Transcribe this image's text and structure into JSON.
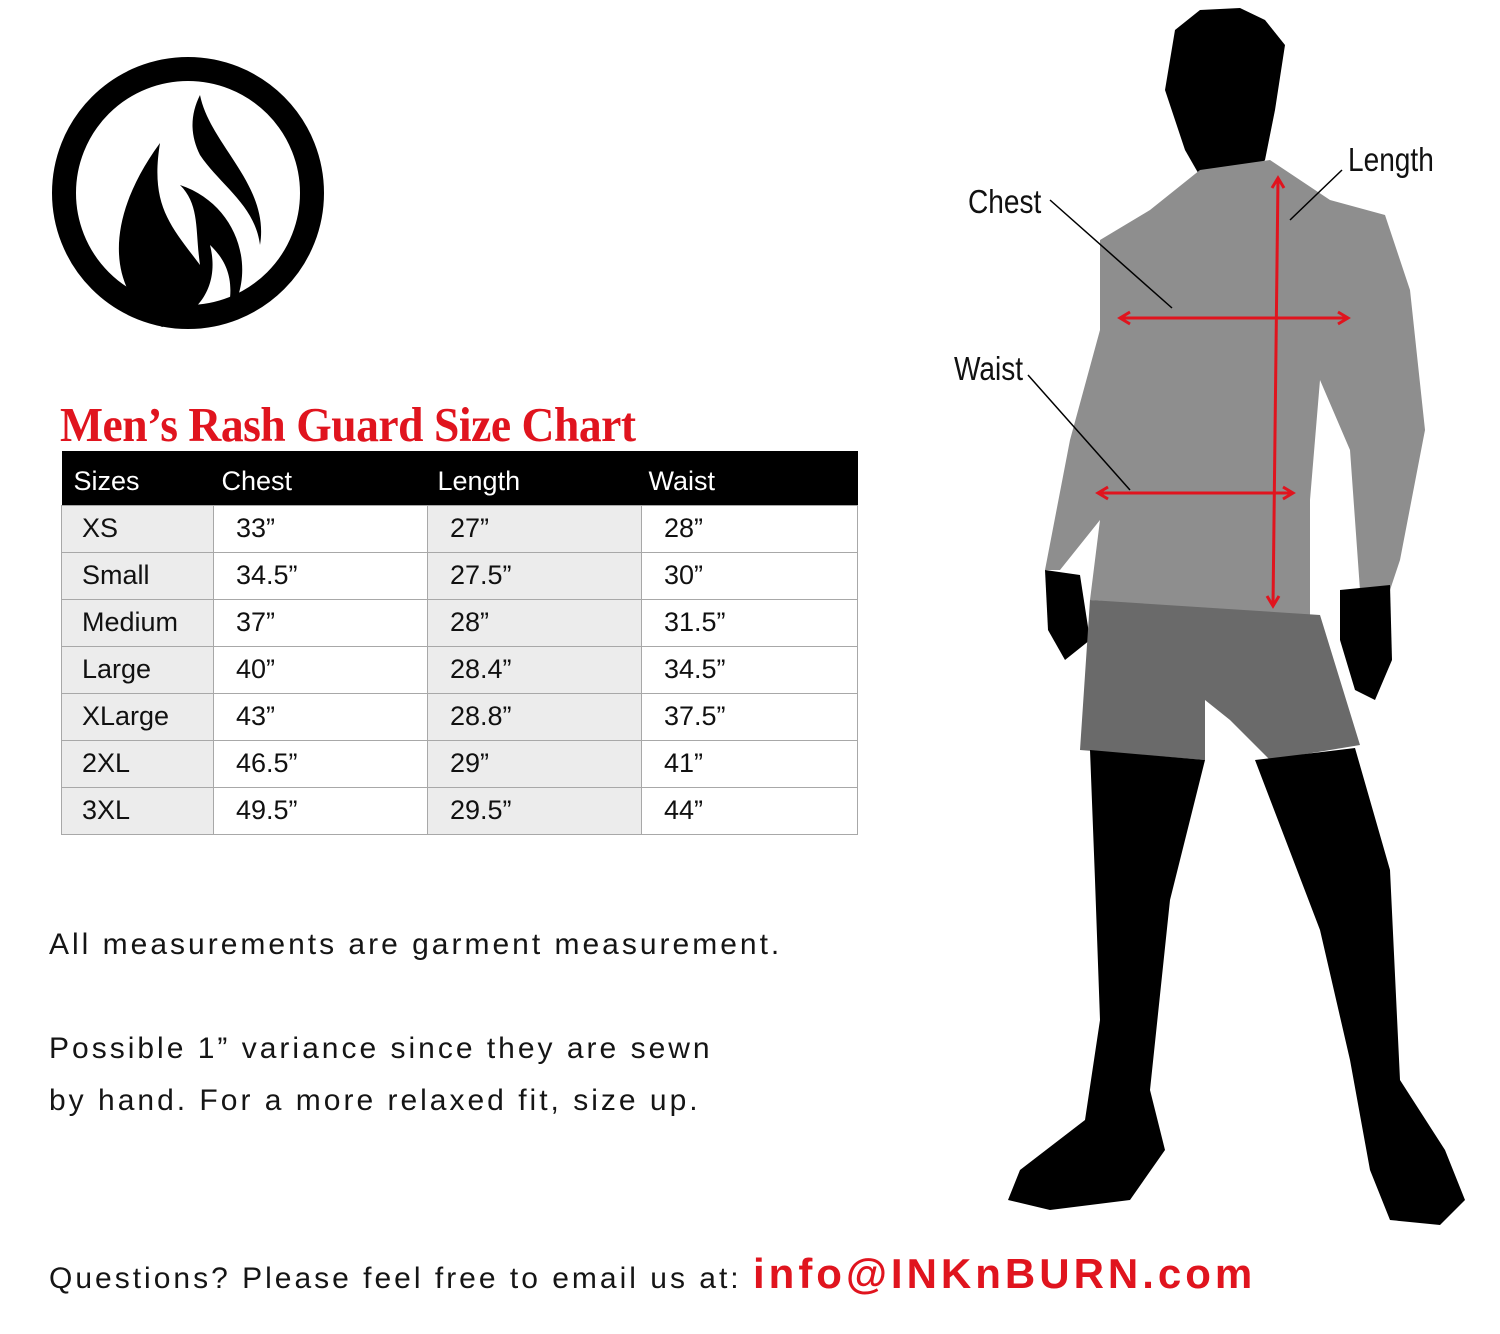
{
  "brand": {
    "logo": "INKnBURN flame logo"
  },
  "title": "Men’s Rash Guard Size Chart",
  "table": {
    "headers": [
      "Sizes",
      "Chest",
      "Length",
      "Waist"
    ],
    "rows": [
      [
        "XS",
        "33”",
        "27”",
        "28”"
      ],
      [
        "Small",
        "34.5”",
        "27.5”",
        "30”"
      ],
      [
        "Medium",
        "37”",
        "28”",
        "31.5”"
      ],
      [
        "Large",
        "40”",
        "28.4”",
        "34.5”"
      ],
      [
        "XLarge",
        "43”",
        "28.8”",
        "37.5”"
      ],
      [
        "2XL",
        "46.5”",
        "29”",
        "41”"
      ],
      [
        "3XL",
        "49.5”",
        "29.5”",
        "44”"
      ]
    ]
  },
  "notes": {
    "line1": "All measurements are garment measurement.",
    "line2": "Possible 1” variance since they are sewn",
    "line3": "by hand. For a more relaxed fit, size up."
  },
  "contact": {
    "prompt": "Questions? Please feel free to email us at:",
    "email": "info@INKnBURN.com"
  },
  "figure": {
    "labels": {
      "chest": "Chest",
      "length": "Length",
      "waist": "Waist"
    }
  },
  "colors": {
    "accent": "#e0141e",
    "header_bg": "#000000",
    "shaded_col": "#ececec"
  }
}
